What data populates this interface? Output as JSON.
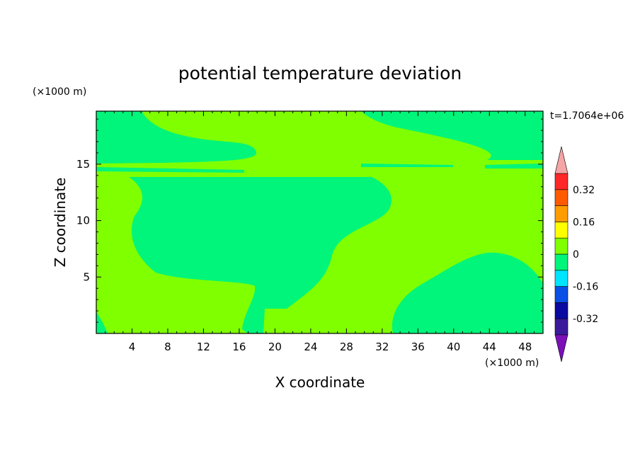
{
  "chart_data": {
    "type": "heatmap",
    "title": "potential temperature deviation",
    "xlabel": "X coordinate",
    "ylabel": "Z coordinate",
    "x_unit": "(×1000 m)",
    "y_unit": "(×1000 m)",
    "time_label": "t=1.7064e+06",
    "xlim": [
      0,
      50
    ],
    "ylim": [
      0,
      19.7
    ],
    "x_ticks": [
      4,
      8,
      12,
      16,
      20,
      24,
      28,
      32,
      36,
      40,
      44,
      48
    ],
    "y_ticks": [
      5,
      10,
      15
    ],
    "colorbar": {
      "levels": [
        -0.4,
        -0.32,
        -0.24,
        -0.16,
        -0.08,
        0,
        0.08,
        0.16,
        0.24,
        0.32,
        0.4
      ],
      "tick_labels": [
        "-0.32",
        "-0.16",
        "0",
        "0.16",
        "0.32"
      ],
      "tick_values": [
        -0.32,
        -0.16,
        0,
        0.16,
        0.32
      ],
      "colors": [
        "#3a1a9a",
        "#0a0aa0",
        "#0a4fe6",
        "#00e5ff",
        "#00f57a",
        "#7fff00",
        "#ffff00",
        "#ff9c00",
        "#ff5a00",
        "#ff2828"
      ],
      "under_color": "#7b10b8",
      "over_color": "#f5a5a5"
    },
    "fields": {
      "background_color": "#7fff00",
      "negative_color": "#00f57a"
    }
  }
}
